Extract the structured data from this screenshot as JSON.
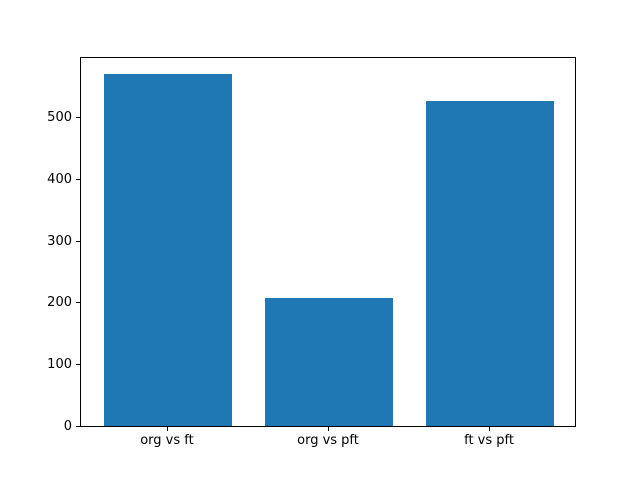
{
  "chart_data": {
    "type": "bar",
    "title": "",
    "xlabel": "",
    "ylabel": "",
    "categories": [
      "org vs ft",
      "org vs pft",
      "ft vs pft"
    ],
    "values": [
      570,
      207,
      526
    ],
    "ylim": [
      0,
      598.5
    ],
    "yticks": [
      0,
      100,
      200,
      300,
      400,
      500
    ],
    "bar_width_fraction": 0.8,
    "x_margin_fraction": 0.05,
    "bar_color": "#1f77b4",
    "axis_color": "#000000",
    "text_color": "#000000",
    "background_color": "#ffffff",
    "grid": false,
    "legend": null
  }
}
